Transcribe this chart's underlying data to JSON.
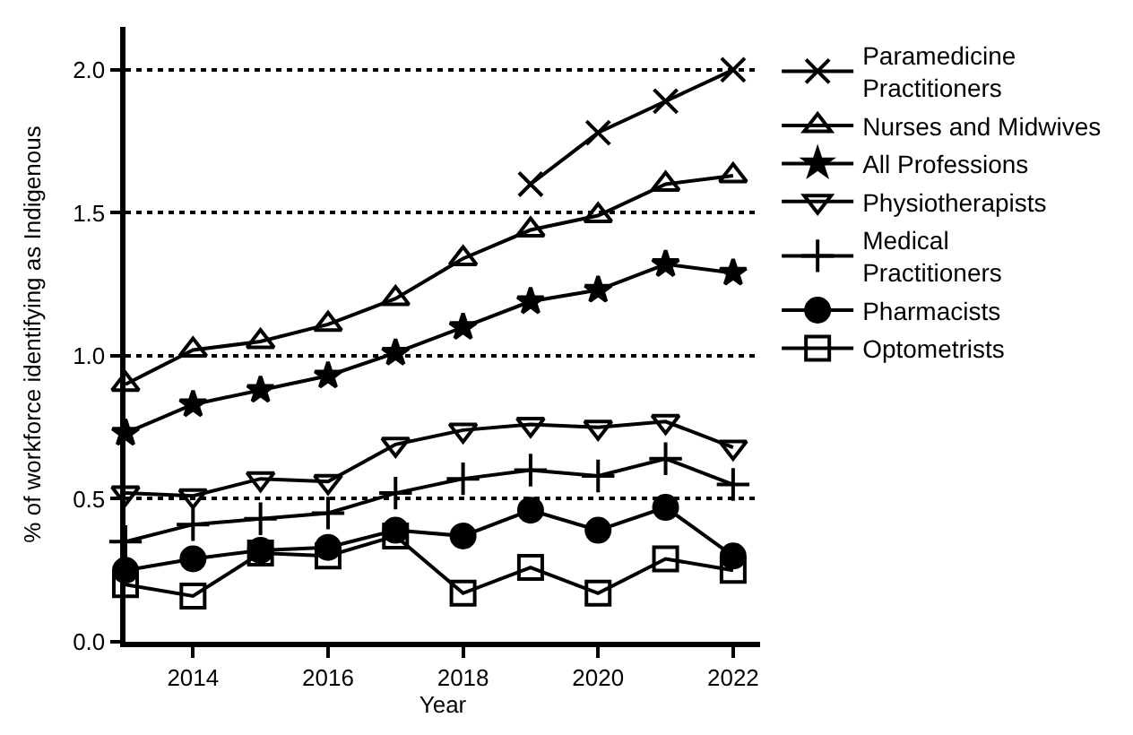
{
  "chart_data": {
    "type": "line",
    "xlabel": "Year",
    "ylabel": "% of workforce identifying as Indigenous",
    "x": [
      2013,
      2014,
      2015,
      2016,
      2017,
      2018,
      2019,
      2020,
      2021,
      2022
    ],
    "xlim": [
      2013,
      2022.4
    ],
    "xticks": [
      2014,
      2016,
      2018,
      2020,
      2022
    ],
    "ylim": [
      0,
      2.15
    ],
    "yticks": [
      {
        "value": 0,
        "label": "0.0"
      },
      0.5,
      {
        "value": 1,
        "label": "1.0"
      },
      1.5,
      {
        "value": 2,
        "label": "2.0"
      }
    ],
    "grid": "y",
    "legend": "right",
    "line_style": "solid",
    "series": [
      {
        "name": "Paramedicine Practitioners",
        "color": "#000000",
        "marker": "x",
        "values": [
          null,
          null,
          null,
          null,
          null,
          null,
          1.6,
          1.78,
          1.89,
          2.0
        ]
      },
      {
        "name": "Nurses and Midwives",
        "color": "#000000",
        "marker": "triangle",
        "values": [
          0.9,
          1.02,
          1.05,
          1.11,
          1.2,
          1.34,
          1.44,
          1.49,
          1.6,
          1.63
        ]
      },
      {
        "name": "All Professions",
        "color": "#000000",
        "marker": "star",
        "values": [
          0.73,
          0.83,
          0.88,
          0.93,
          1.01,
          1.1,
          1.19,
          1.23,
          1.32,
          1.29
        ]
      },
      {
        "name": "Physiotherapists",
        "color": "#000000",
        "marker": "triangle-down",
        "values": [
          0.52,
          0.51,
          0.57,
          0.56,
          0.69,
          0.74,
          0.76,
          0.75,
          0.77,
          0.68
        ]
      },
      {
        "name": "Medical Practitioners",
        "color": "#000000",
        "marker": "cross",
        "values": [
          0.35,
          0.41,
          0.43,
          0.45,
          0.52,
          0.57,
          0.6,
          0.58,
          0.64,
          0.55
        ]
      },
      {
        "name": "Pharmacists",
        "color": "#000000",
        "marker": "circle",
        "values": [
          0.25,
          0.29,
          0.32,
          0.33,
          0.39,
          0.37,
          0.46,
          0.39,
          0.47,
          0.3
        ]
      },
      {
        "name": "Optometrists",
        "color": "#000000",
        "marker": "square",
        "values": [
          0.2,
          0.16,
          0.31,
          0.3,
          0.37,
          0.17,
          0.26,
          0.17,
          0.29,
          0.25
        ]
      }
    ]
  }
}
